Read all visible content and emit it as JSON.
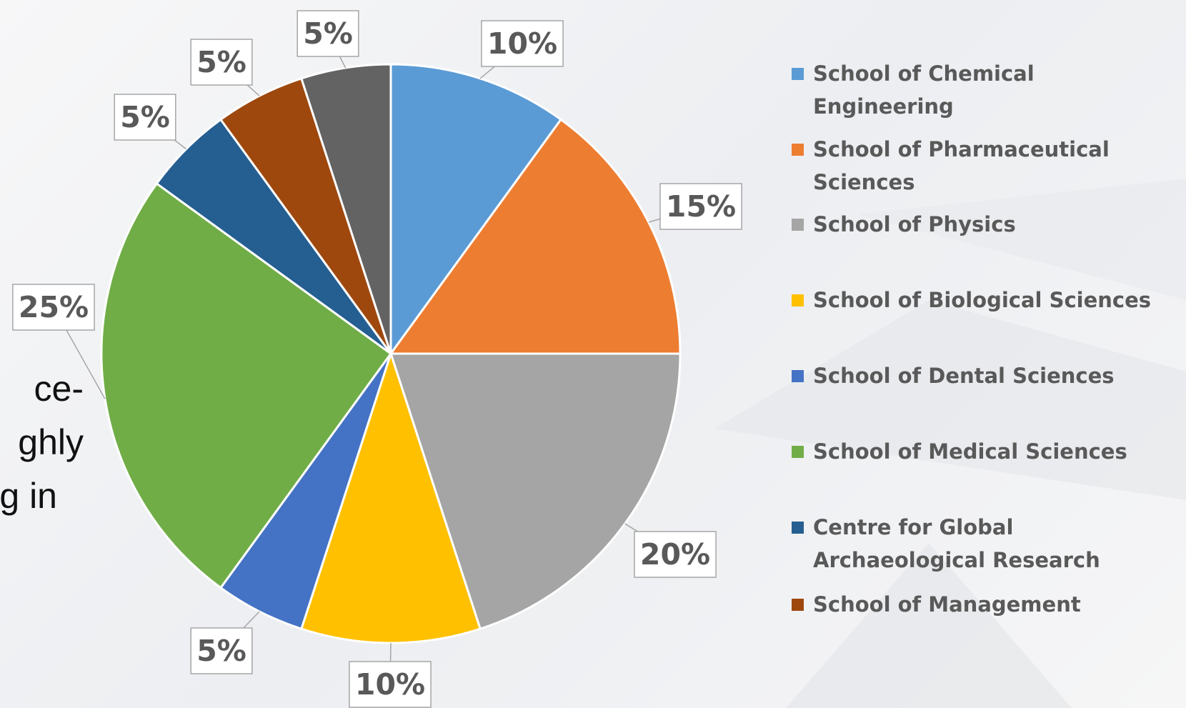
{
  "chart_data": {
    "type": "pie",
    "categories": [
      "School of Chemical Engineering",
      "School of Pharmaceutical Sciences",
      "School of Physics",
      "School of Biological Sciences",
      "School of Dental Sciences",
      "School of Medical Sciences",
      "Centre for Global Archaeological Research",
      "School of Management",
      null
    ],
    "values": [
      10,
      15,
      20,
      10,
      5,
      25,
      5,
      5,
      5
    ],
    "value_labels": [
      "10%",
      "15%",
      "20%",
      "10%",
      "5%",
      "25%",
      "5%",
      "5%",
      "5%"
    ],
    "colors": [
      "#5b9bd5",
      "#ed7d31",
      "#a5a5a5",
      "#ffc000",
      "#4472c4",
      "#70ad47",
      "#255e91",
      "#9e480e",
      "#636363"
    ],
    "legend": "right",
    "annotations": [
      "ce-",
      "ghly",
      "g in"
    ]
  }
}
